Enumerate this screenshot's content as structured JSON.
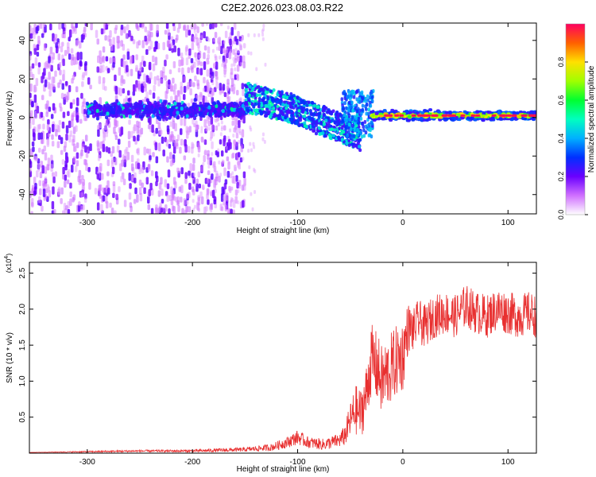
{
  "title": "C2E2.2026.023.08.03.R22",
  "chart_data": [
    {
      "type": "heatmap",
      "xlabel": "Height of straight line (km)",
      "ylabel": "Frequency (Hz)",
      "xlim": [
        -355,
        127
      ],
      "ylim": [
        -50,
        49
      ],
      "x_ticks": [
        -300,
        -200,
        -100,
        0,
        100
      ],
      "y_ticks": [
        -40,
        -20,
        0,
        20,
        40
      ],
      "colorbar": {
        "label": "Normalized spectral amplitude",
        "range": [
          0,
          1
        ],
        "ticks": [
          0.0,
          0.2,
          0.4,
          0.6,
          0.8
        ]
      },
      "features": [
        {
          "name": "noise scatter",
          "x_range": [
            -355,
            -150
          ],
          "freq_range": [
            -50,
            49
          ],
          "amplitude": 0.1
        },
        {
          "name": "main band",
          "x_range": [
            -300,
            -150
          ],
          "freq_center": 4,
          "freq_spread": 6,
          "amplitude": 0.2
        },
        {
          "name": "descending band",
          "x_range": [
            -150,
            -40
          ],
          "freq_start": 8,
          "freq_end": -12,
          "amplitude": 0.35
        },
        {
          "name": "steady tone",
          "x_range": [
            -30,
            127
          ],
          "freq_center": 1,
          "freq_spread": 2,
          "amplitude": 0.7
        }
      ]
    },
    {
      "type": "line",
      "xlabel": "Height of straight line (km)",
      "ylabel": "SNR (10 * v/v)",
      "y_multiplier": "(x10",
      "y_multiplier_exp": "4",
      "xlim": [
        -355,
        127
      ],
      "ylim": [
        0,
        2.65
      ],
      "x_ticks": [
        -300,
        -200,
        -100,
        0,
        100
      ],
      "y_ticks": [
        0.5,
        1.0,
        1.5,
        2.0,
        2.5
      ],
      "series": [
        {
          "name": "SNR",
          "color": "#e83030",
          "x": [
            -355,
            -300,
            -250,
            -200,
            -150,
            -125,
            -110,
            -100,
            -90,
            -75,
            -60,
            -55,
            -50,
            -45,
            -40,
            -35,
            -30,
            -25,
            -20,
            -15,
            -10,
            -5,
            0,
            5,
            10,
            15,
            20,
            30,
            40,
            50,
            60,
            70,
            80,
            90,
            100,
            110,
            120,
            127
          ],
          "y": [
            0.01,
            0.02,
            0.03,
            0.03,
            0.05,
            0.08,
            0.15,
            0.22,
            0.15,
            0.12,
            0.18,
            0.25,
            0.45,
            0.6,
            0.55,
            0.8,
            1.3,
            1.2,
            1.0,
            1.1,
            1.2,
            1.3,
            1.35,
            1.75,
            1.7,
            1.85,
            1.75,
            1.9,
            1.95,
            1.9,
            2.05,
            1.95,
            1.9,
            2.0,
            1.95,
            1.9,
            1.95,
            1.9
          ],
          "noise": [
            0,
            0.01,
            0.015,
            0.02,
            0.03,
            0.05,
            0.08,
            0.1,
            0.08,
            0.08,
            0.1,
            0.15,
            0.25,
            0.35,
            0.35,
            0.4,
            0.5,
            0.5,
            0.5,
            0.5,
            0.5,
            0.5,
            0.5,
            0.35,
            0.3,
            0.3,
            0.3,
            0.3,
            0.3,
            0.3,
            0.3,
            0.3,
            0.3,
            0.3,
            0.3,
            0.3,
            0.3,
            0.3
          ]
        }
      ]
    }
  ]
}
